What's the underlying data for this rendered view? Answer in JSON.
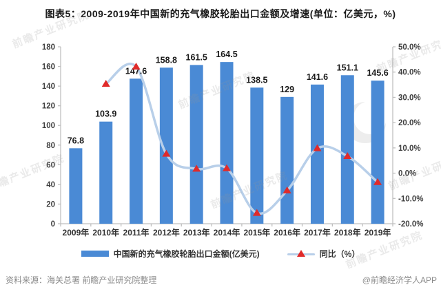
{
  "title": "图表5：2009-2019年中国新的充气橡胶轮胎出口金额及增速(单位：亿美元，%)",
  "watermark": {
    "text": "前瞻产业研究院"
  },
  "footer": {
    "source": "资料来源：海关总署 前瞻产业研究院整理",
    "credit": "@前瞻经济学人APP"
  },
  "chart_data": {
    "type": "bar",
    "title": "图表5：2009-2019年中国新的充气橡胶轮胎出口金额及增速(单位：亿美元，%)",
    "categories": [
      "2009年",
      "2010年",
      "2011年",
      "2012年",
      "2013年",
      "2014年",
      "2015年",
      "2016年",
      "2017年",
      "2018年",
      "2019年"
    ],
    "series": [
      {
        "name": "中国新的充气橡胶轮胎出口金额(亿美元)",
        "type": "bar",
        "axis": "left",
        "color": "#4a8ad5",
        "values": [
          76.8,
          103.9,
          147.6,
          158.8,
          161.5,
          164.5,
          138.5,
          129,
          141.6,
          151.1,
          145.6
        ],
        "value_labels": [
          "76.8",
          "103.9",
          "147.6",
          "158.8",
          "161.5",
          "164.5",
          "138.5",
          "129",
          "141.6",
          "151.1",
          "145.6"
        ]
      },
      {
        "name": "同比（%）",
        "type": "line",
        "axis": "right",
        "color": "#b8cfe9",
        "marker": "triangle",
        "marker_color": "#e02a2a",
        "values": [
          null,
          35.3,
          42.1,
          7.6,
          1.7,
          1.9,
          -15.8,
          -6.9,
          9.8,
          6.7,
          -3.6
        ]
      }
    ],
    "left_axis": {
      "min": 0,
      "max": 180,
      "step": 20,
      "label_format": "number"
    },
    "right_axis": {
      "min": -20,
      "max": 50,
      "step": 10,
      "label_format": "percent_1dp"
    },
    "grid": false,
    "legend_position": "bottom",
    "axis_color": "#bfbfbf",
    "tick_label_color": "#404040",
    "value_label_color": "#1a1a1a"
  }
}
